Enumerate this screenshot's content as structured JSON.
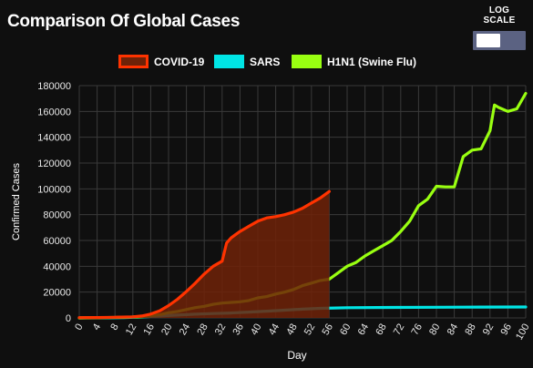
{
  "title": "Comparison Of Global Cases",
  "log_scale": {
    "label": "LOG SCALE",
    "enabled": false
  },
  "colors": {
    "covid": "#ff3300",
    "covid_fill": "#6e2208",
    "sars": "#00e5e5",
    "h1n1": "#99ff11"
  },
  "chart_data": {
    "type": "line",
    "xlabel": "Day",
    "ylabel": "Confirmed Cases",
    "xlim": [
      0,
      100
    ],
    "ylim": [
      0,
      180000
    ],
    "grid": true,
    "legend": "top",
    "x_ticks": [
      "0",
      "4",
      "8",
      "12",
      "16",
      "20",
      "24",
      "28",
      "32",
      "36",
      "40",
      "44",
      "48",
      "52",
      "56",
      "60",
      "64",
      "68",
      "72",
      "76",
      "80",
      "84",
      "88",
      "92",
      "96",
      "100"
    ],
    "y_ticks": [
      "0",
      "20000",
      "40000",
      "60000",
      "80000",
      "100000",
      "120000",
      "140000",
      "160000",
      "180000"
    ],
    "series": [
      {
        "name": "COVID-19",
        "fill": true,
        "x": [
          0,
          4,
          8,
          12,
          14,
          16,
          18,
          20,
          22,
          24,
          26,
          28,
          30,
          32,
          33,
          34,
          35,
          36,
          38,
          40,
          42,
          44,
          46,
          48,
          50,
          52,
          54,
          56
        ],
        "y": [
          200,
          300,
          500,
          800,
          1500,
          3000,
          5500,
          9500,
          14500,
          20500,
          27000,
          34000,
          40000,
          44000,
          58000,
          62000,
          64500,
          67000,
          71000,
          75000,
          77500,
          78500,
          80000,
          82000,
          85000,
          89000,
          93000,
          98000
        ]
      },
      {
        "name": "SARS",
        "fill": false,
        "x": [
          0,
          10,
          14,
          18,
          22,
          26,
          30,
          34,
          38,
          42,
          46,
          50,
          54,
          60,
          70,
          80,
          90,
          100
        ],
        "y": [
          0,
          200,
          800,
          1500,
          2200,
          2900,
          3400,
          3800,
          4500,
          5200,
          6000,
          6800,
          7400,
          7900,
          8100,
          8250,
          8400,
          8450
        ]
      },
      {
        "name": "H1N1 (Swine Flu)",
        "fill": false,
        "x": [
          0,
          10,
          14,
          18,
          20,
          22,
          24,
          26,
          28,
          30,
          32,
          34,
          36,
          38,
          40,
          42,
          44,
          46,
          48,
          50,
          52,
          54,
          56,
          58,
          60,
          62,
          64,
          66,
          68,
          70,
          72,
          74,
          76,
          78,
          80,
          82,
          84,
          86,
          88,
          90,
          92,
          93,
          94,
          96,
          98,
          100
        ],
        "y": [
          0,
          500,
          1000,
          2500,
          4000,
          5000,
          6500,
          8000,
          9000,
          10500,
          11500,
          12000,
          12500,
          13500,
          15500,
          16500,
          18500,
          20000,
          22000,
          25000,
          27000,
          29000,
          30000,
          35000,
          40000,
          43000,
          48000,
          52000,
          56000,
          60000,
          67000,
          75000,
          87000,
          92000,
          102000,
          101500,
          101500,
          125000,
          130000,
          131000,
          145000,
          165000,
          163000,
          160000,
          162000,
          174000
        ]
      }
    ]
  }
}
